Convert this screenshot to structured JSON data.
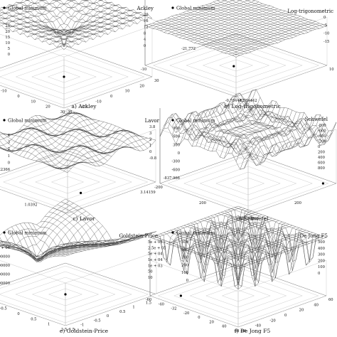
{
  "legend_label": "Global minimum",
  "chart_data": [
    {
      "type": "surface3d",
      "title": "Ackley",
      "caption": "a) Ackley",
      "colorbar_ticks": [
        "20",
        "16",
        "12",
        "8",
        "4",
        "0"
      ],
      "z_ticks": [
        "25",
        "20",
        "15",
        "10",
        "5",
        "0"
      ],
      "x_ticks": [
        "-30",
        "-20",
        "-10",
        "0",
        "10",
        "20",
        "30"
      ],
      "y_ticks": [
        "-30",
        "-20",
        "-10",
        "0",
        "10",
        "20",
        "30"
      ],
      "minimum": {
        "x": 0,
        "y": 0,
        "z": 0
      },
      "annotations": []
    },
    {
      "type": "surface3d",
      "title": "Log-trigonometric",
      "caption": "b) Log-trigonometric",
      "colorbar_ticks": [
        "0",
        "-5",
        "-10",
        "-15"
      ],
      "z_ticks": [
        "-21.772"
      ],
      "x_ticks": [
        "-10",
        "-0.784442"
      ],
      "y_ticks": [
        "-0.784442",
        "10"
      ],
      "minimum": {
        "x": -0.784442,
        "y": -0.784442,
        "z": -21.772
      },
      "annotations": [
        "-21.772",
        "-0.784442",
        "-0.784442"
      ]
    },
    {
      "type": "surface3d",
      "title": "Lavor",
      "caption": "c) Lavor",
      "colorbar_ticks": [
        "3.8",
        "3",
        "2",
        "1",
        "0",
        "-0.8"
      ],
      "z_ticks": [
        "4",
        "3",
        "2",
        "1",
        "0",
        "-0.0822366"
      ],
      "x_ticks": [
        "1.0392"
      ],
      "y_ticks": [
        "3.14159"
      ],
      "minimum": {
        "x": 1.0392,
        "y": 3.14159,
        "z": -0.0822366
      },
      "annotations": [
        "-0.0822366",
        "1.0392",
        "3.14159"
      ]
    },
    {
      "type": "surface3d",
      "title": "Schwefel",
      "caption": "d) Schwefel",
      "colorbar_ticks": [
        "-800",
        "-600",
        "-400",
        "-200",
        "0",
        "200",
        "400",
        "600",
        "800"
      ],
      "z_ticks": [
        "900",
        "600",
        "300",
        "0",
        "-300",
        "-600",
        "-837.966"
      ],
      "x_ticks": [
        "-200",
        "200",
        "420.969"
      ],
      "y_ticks": [
        "-200",
        "200",
        "420.969"
      ],
      "minimum": {
        "x": 420.969,
        "y": 420.969,
        "z": -837.966
      },
      "annotations": [
        "-837.966",
        "420.969",
        "420.969"
      ]
    },
    {
      "type": "surface3d",
      "title": "Goldstein-Price",
      "caption": "e) Goldstein-Price",
      "colorbar_ticks": [
        "5e + 05",
        "2.5e + 05",
        "5e + 04",
        "1e + 04",
        "1e + 03",
        "50",
        "10"
      ],
      "z_ticks": [
        "1e + 06",
        "800000",
        "600000",
        "400000",
        "200000"
      ],
      "x_ticks": [
        "-1.5",
        "-1",
        "-0.5",
        "0",
        "0.5",
        "1",
        "1.5"
      ],
      "y_ticks": [
        "-1.5",
        "-1",
        "-0.5",
        "0",
        "0.5",
        "1",
        "1.5",
        "2"
      ],
      "minimum": {
        "x": 0,
        "y": -1,
        "z": 3
      },
      "annotations": []
    },
    {
      "type": "surface3d",
      "title": "De Jong F5",
      "caption": "f) De Jong F5",
      "colorbar_ticks": [
        "500",
        "400",
        "300",
        "200",
        "100",
        "0"
      ],
      "z_ticks": [
        "500",
        "400",
        "300",
        "200",
        "100",
        "0"
      ],
      "x_ticks": [
        "-60",
        "-40",
        "-32",
        "-20",
        "0",
        "20",
        "40",
        "60"
      ],
      "y_ticks": [
        "-60",
        "-40",
        "-20",
        "0",
        "20",
        "40",
        "60"
      ],
      "minimum": {
        "x": -32,
        "y": -32,
        "z": 1
      },
      "annotations": []
    }
  ]
}
